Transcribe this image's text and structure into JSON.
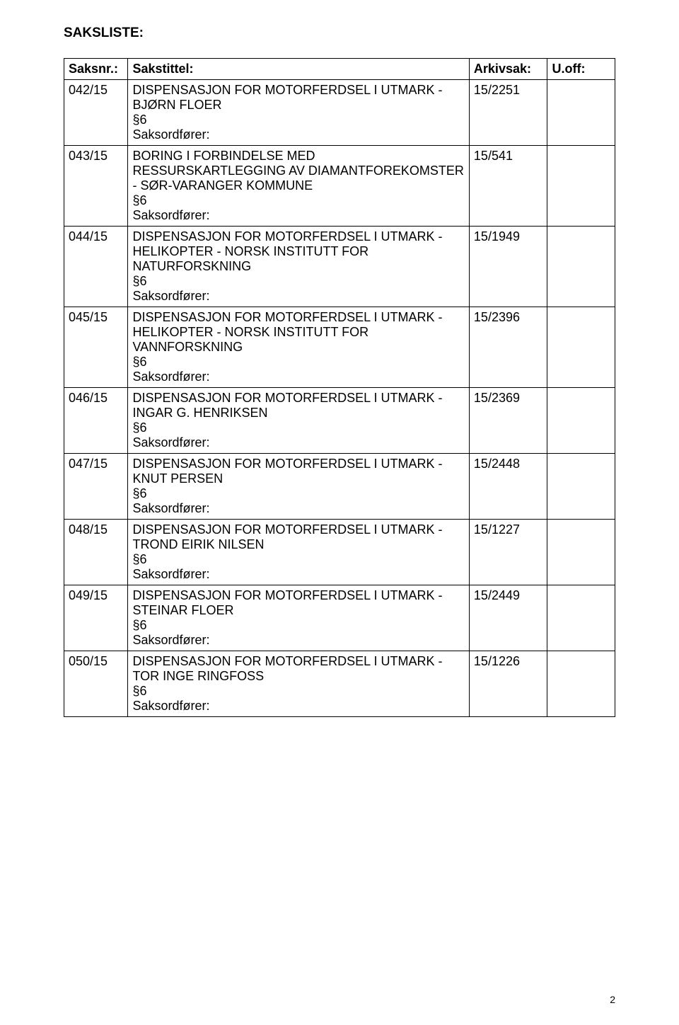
{
  "title": "SAKSLISTE:",
  "headers": {
    "saksnr": "Saksnr.:",
    "sakstittel": "Sakstittel:",
    "arkivsak": "Arkivsak:",
    "uoff": "U.off:"
  },
  "rows": [
    {
      "saksnr": "042/15",
      "sakstittel": "DISPENSASJON FOR MOTORFERDSEL I UTMARK - BJØRN FLOER\n§6\nSaksordfører:",
      "arkivsak": "15/2251",
      "uoff": ""
    },
    {
      "saksnr": "043/15",
      "sakstittel": "BORING I FORBINDELSE MED RESSURSKARTLEGGING AV DIAMANTFOREKOMSTER - SØR-VARANGER KOMMUNE\n§6\nSaksordfører:",
      "arkivsak": "15/541",
      "uoff": ""
    },
    {
      "saksnr": "044/15",
      "sakstittel": "DISPENSASJON FOR MOTORFERDSEL I UTMARK - HELIKOPTER - NORSK INSTITUTT FOR NATURFORSKNING\n§6\nSaksordfører:",
      "arkivsak": "15/1949",
      "uoff": ""
    },
    {
      "saksnr": "045/15",
      "sakstittel": "DISPENSASJON FOR MOTORFERDSEL I UTMARK - HELIKOPTER - NORSK INSTITUTT FOR VANNFORSKNING\n§6\nSaksordfører:",
      "arkivsak": "15/2396",
      "uoff": ""
    },
    {
      "saksnr": "046/15",
      "sakstittel": "DISPENSASJON FOR MOTORFERDSEL I UTMARK - INGAR G. HENRIKSEN\n§6\nSaksordfører:",
      "arkivsak": "15/2369",
      "uoff": ""
    },
    {
      "saksnr": "047/15",
      "sakstittel": "DISPENSASJON FOR MOTORFERDSEL I UTMARK - KNUT PERSEN\n§6\nSaksordfører:",
      "arkivsak": "15/2448",
      "uoff": ""
    },
    {
      "saksnr": "048/15",
      "sakstittel": "DISPENSASJON FOR MOTORFERDSEL I UTMARK - TROND EIRIK NILSEN\n§6\nSaksordfører:",
      "arkivsak": "15/1227",
      "uoff": ""
    },
    {
      "saksnr": "049/15",
      "sakstittel": "DISPENSASJON FOR MOTORFERDSEL I UTMARK - STEINAR FLOER\n§6\nSaksordfører:",
      "arkivsak": "15/2449",
      "uoff": ""
    },
    {
      "saksnr": "050/15",
      "sakstittel": "DISPENSASJON FOR MOTORFERDSEL I UTMARK - TOR INGE RINGFOSS\n§6\nSaksordfører:",
      "arkivsak": "15/1226",
      "uoff": ""
    }
  ],
  "page_number": "2"
}
